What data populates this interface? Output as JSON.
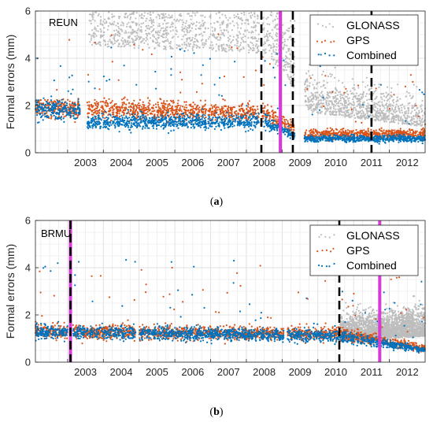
{
  "chart_data": [
    {
      "type": "scatter",
      "panel_label": "(a)",
      "panel_letter": "a",
      "site": "REUN",
      "ylabel": "Formal errors (mm)",
      "xlabel": "",
      "xlim": [
        2002.1,
        2013.0
      ],
      "ylim": [
        0,
        6
      ],
      "yticks": [
        0,
        2,
        4,
        6
      ],
      "xticks": [
        2003,
        2004,
        2005,
        2006,
        2007,
        2008,
        2009,
        2010,
        2011,
        2012
      ],
      "grid": true,
      "legend_position": "top-right",
      "series": [
        {
          "name": "GLONASS",
          "color": "#bdbdbd",
          "approx_level_by_year": [
            [
              2003.6,
              4.8
            ],
            [
              2008.6,
              4.5
            ],
            [
              2009.8,
              2.0
            ],
            [
              2013.0,
              1.4
            ]
          ]
        },
        {
          "name": "GPS",
          "color": "#d95319",
          "approx_level_by_year": [
            [
              2002.1,
              1.9
            ],
            [
              2008.5,
              1.7
            ],
            [
              2009.6,
              0.8
            ],
            [
              2013.0,
              0.8
            ]
          ]
        },
        {
          "name": "Combined",
          "color": "#0072bd",
          "approx_level_by_year": [
            [
              2002.1,
              1.8
            ],
            [
              2003.4,
              1.8
            ],
            [
              2003.5,
              1.3
            ],
            [
              2008.5,
              1.3
            ],
            [
              2009.6,
              0.6
            ],
            [
              2013.0,
              0.6
            ]
          ]
        }
      ],
      "gaps": [
        [
          2003.35,
          2003.55
        ],
        [
          2006.88,
          2006.93
        ],
        [
          2008.35,
          2008.45
        ],
        [
          2009.35,
          2009.62
        ]
      ],
      "vertical_lines": [
        {
          "x": 2008.42,
          "style": "dashed",
          "color": "#000000"
        },
        {
          "x": 2008.95,
          "style": "solid",
          "color": "#d63bd6"
        },
        {
          "x": 2009.3,
          "style": "dashed",
          "color": "#000000"
        },
        {
          "x": 2011.5,
          "style": "dashed",
          "color": "#000000"
        }
      ]
    },
    {
      "type": "scatter",
      "panel_label": "(b)",
      "panel_letter": "b",
      "site": "BRMU",
      "ylabel": "Formal errors (mm)",
      "xlabel": "",
      "xlim": [
        2002.1,
        2013.0
      ],
      "ylim": [
        0,
        6
      ],
      "yticks": [
        0,
        2,
        4,
        6
      ],
      "xticks": [
        2003,
        2004,
        2005,
        2006,
        2007,
        2008,
        2009,
        2010,
        2011,
        2012
      ],
      "grid": true,
      "legend_position": "top-right",
      "series": [
        {
          "name": "GLONASS",
          "color": "#bdbdbd",
          "approx_level_by_year": [
            [
              2010.6,
              1.2
            ],
            [
              2013.0,
              1.4
            ]
          ]
        },
        {
          "name": "GPS",
          "color": "#d95319",
          "approx_level_by_year": [
            [
              2002.1,
              1.3
            ],
            [
              2010.6,
              1.2
            ],
            [
              2013.0,
              0.6
            ]
          ]
        },
        {
          "name": "Combined",
          "color": "#0072bd",
          "approx_level_by_year": [
            [
              2002.1,
              1.3
            ],
            [
              2010.6,
              1.1
            ],
            [
              2013.0,
              0.5
            ]
          ]
        }
      ],
      "gaps": [
        [
          2003.0,
          2003.15
        ],
        [
          2004.9,
          2005.0
        ],
        [
          2009.05,
          2009.15
        ]
      ],
      "vertical_lines": [
        {
          "x": 2003.08,
          "style": "solid",
          "color": "#d63bd6"
        },
        {
          "x": 2003.08,
          "style": "dashed",
          "color": "#000000"
        },
        {
          "x": 2010.6,
          "style": "dashed",
          "color": "#000000"
        },
        {
          "x": 2011.73,
          "style": "solid",
          "color": "#d63bd6"
        }
      ]
    }
  ]
}
